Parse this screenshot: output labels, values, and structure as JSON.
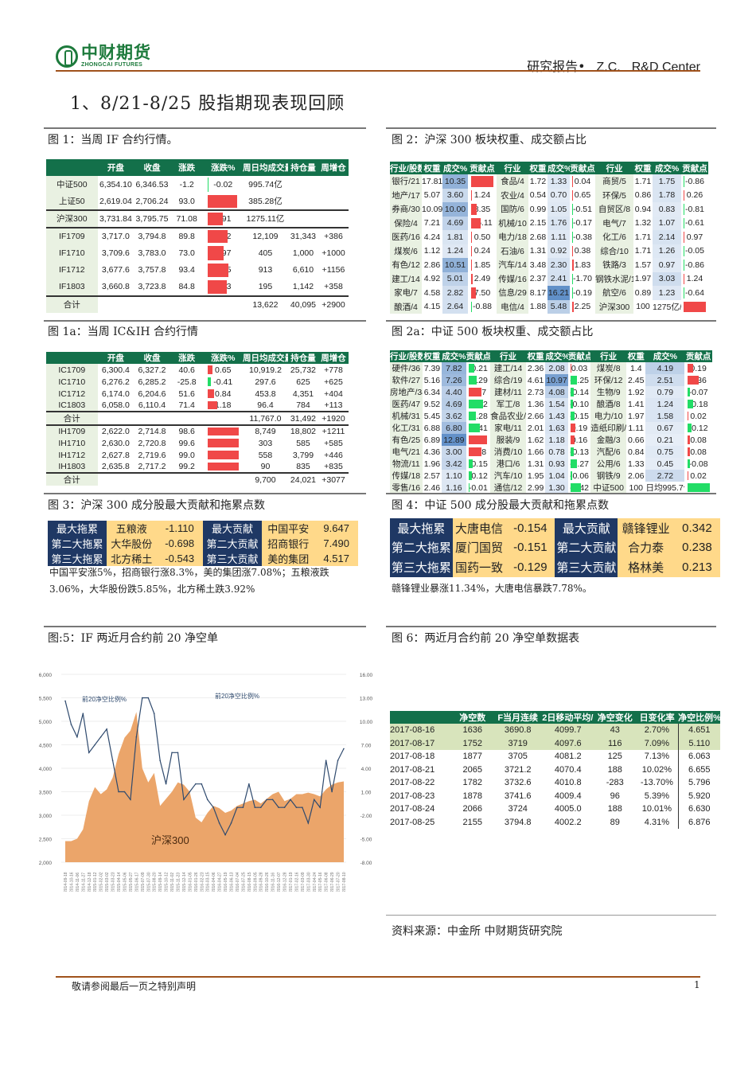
{
  "header": {
    "logo_cn": "中财期货",
    "logo_en": "ZHONGCAI FUTURES",
    "report": "研究报告•",
    "zc": "Z.C.",
    "center": "R&D Center"
  },
  "title": "1、8/21-8/25 股指期现表现回顾",
  "captions": {
    "fig1": "图 1：当周 IF 合约行情。",
    "fig2": "图 2：沪深 300 板块权重、成交额占比",
    "fig1a": "图 1a：当周 IC&IH 合约行情",
    "fig2a": "图 2a：中证 500 板块权重、成交额占比",
    "fig3": "图 3：沪深 300 成分股最大贡献和拖累点数",
    "fig4": "图 4：中证 500 成分股最大贡献和拖累点数",
    "fig5": "图:5：IF 两近月合约前 20 净空单",
    "fig6": "图 6：两近月合约前 20 净空单数据表"
  },
  "fig1": {
    "headers": [
      "",
      "开盘",
      "收盘",
      "涨跌",
      "涨跌%",
      "周日均成交量",
      "持仓量",
      "周增仓"
    ],
    "rows": [
      [
        "中证500",
        "6,354.10",
        "6,346.53",
        "-1.2",
        "-0.02",
        "995.74亿",
        "",
        ""
      ],
      [
        "上证50",
        "2,619.04",
        "2,706.24",
        "93.0",
        "3.56",
        "385.28亿",
        "",
        ""
      ],
      [
        "沪深300",
        "3,731.84",
        "3,795.75",
        "71.08",
        "1.91",
        "1275.11亿",
        "",
        ""
      ],
      [
        "IF1709",
        "3,717.0",
        "3,794.8",
        "89.8",
        "2.42",
        "12,109",
        "31,343",
        "+386"
      ],
      [
        "IF1710",
        "3,709.6",
        "3,783.0",
        "73.0",
        "1.97",
        "405",
        "1,000",
        "+1000"
      ],
      [
        "IF1712",
        "3,677.6",
        "3,757.8",
        "93.4",
        "2.55",
        "913",
        "6,610",
        "+1156"
      ],
      [
        "IF1803",
        "3,660.8",
        "3,723.8",
        "84.8",
        "2.33",
        "195",
        "1,142",
        "+358"
      ],
      [
        "合计",
        "",
        "",
        "",
        "",
        "13,622",
        "40,095",
        "+2900"
      ]
    ]
  },
  "fig1a": {
    "headers": [
      "",
      "开盘",
      "收盘",
      "涨跌",
      "涨跌%",
      "周日均成交量",
      "持仓量",
      "周增仓"
    ],
    "rows": [
      [
        "IC1709",
        "6,300.4",
        "6,327.2",
        "40.6",
        "0.65",
        "10,919.2",
        "25,732",
        "+778"
      ],
      [
        "IC1710",
        "6,276.2",
        "6,285.2",
        "-25.8",
        "-0.41",
        "297.6",
        "625",
        "+625"
      ],
      [
        "IC1712",
        "6,174.0",
        "6,204.6",
        "51.6",
        "0.84",
        "453.8",
        "4,351",
        "+404"
      ],
      [
        "IC1803",
        "6,058.0",
        "6,110.4",
        "71.4",
        "1.18",
        "96.4",
        "784",
        "+113"
      ],
      [
        "合计",
        "",
        "",
        "",
        "",
        "11,767.0",
        "31,492",
        "+1920"
      ],
      [
        "IH1709",
        "2,622.0",
        "2,714.8",
        "98.6",
        "3.77",
        "8,749",
        "18,802",
        "+1211"
      ],
      [
        "IH1710",
        "2,630.0",
        "2,720.8",
        "99.6",
        "3.80",
        "303",
        "585",
        "+585"
      ],
      [
        "IH1712",
        "2,627.8",
        "2,719.6",
        "99.0",
        "3.78",
        "558",
        "3,799",
        "+446"
      ],
      [
        "IH1803",
        "2,635.8",
        "2,717.2",
        "99.2",
        "3.79",
        "90",
        "835",
        "+835"
      ],
      [
        "合计",
        "",
        "",
        "",
        "",
        "9,700",
        "24,021",
        "+3077"
      ]
    ]
  },
  "fig2": {
    "headers": [
      "行业/股数",
      "权重",
      "成交%",
      "贡献点",
      "行业",
      "权重",
      "成交%",
      "贡献点",
      "行业",
      "权重",
      "成交%",
      "贡献点"
    ],
    "rows": [
      [
        "银行/21",
        "17.81",
        "10.35",
        "33.83",
        "食品/4",
        "1.72",
        "1.33",
        "0.04",
        "商贸/5",
        "1.71",
        "1.75",
        "-0.86"
      ],
      [
        "地产/17",
        "5.07",
        "3.60",
        "1.24",
        "农业/4",
        "0.54",
        "0.70",
        "0.65",
        "环保/5",
        "0.86",
        "1.78",
        "0.26"
      ],
      [
        "券商/30",
        "10.09",
        "10.00",
        "8.35",
        "国防/6",
        "0.99",
        "1.05",
        "-0.51",
        "自贸区/8",
        "0.94",
        "0.83",
        "-0.81"
      ],
      [
        "保险/4",
        "7.21",
        "4.69",
        "15.11",
        "机械/10",
        "2.15",
        "1.76",
        "-0.17",
        "电气/7",
        "1.32",
        "1.07",
        "-0.61"
      ],
      [
        "医药/16",
        "4.24",
        "1.81",
        "0.50",
        "电力/18",
        "2.68",
        "1.11",
        "-0.38",
        "化工/6",
        "1.71",
        "2.14",
        "0.97"
      ],
      [
        "煤炭/6",
        "1.12",
        "1.24",
        "0.24",
        "石油/6",
        "1.31",
        "0.92",
        "0.38",
        "综合/10",
        "1.71",
        "1.26",
        "-0.05"
      ],
      [
        "有色/12",
        "2.86",
        "10.51",
        "1.85",
        "汽车/14",
        "3.48",
        "2.30",
        "1.83",
        "铁路/3",
        "1.57",
        "0.97",
        "-0.86"
      ],
      [
        "建工/14",
        "4.92",
        "5.01",
        "2.49",
        "传媒/16",
        "2.37",
        "2.41",
        "-1.70",
        "钢铁水泥/10",
        "1.97",
        "3.03",
        "1.24"
      ],
      [
        "家电/7",
        "4.58",
        "2.82",
        "7.50",
        "信息/29",
        "8.17",
        "16.21",
        "-0.19",
        "航空/6",
        "0.89",
        "1.23",
        "-0.64"
      ],
      [
        "酿酒/4",
        "4.15",
        "2.64",
        "-0.88",
        "电信/4",
        "1.88",
        "5.48",
        "2.25",
        "沪深300",
        "100",
        "1275亿/天",
        "71.08"
      ]
    ]
  },
  "fig2a": {
    "headers": [
      "行业/股数",
      "权重",
      "成交%",
      "贡献点",
      "行业",
      "权重",
      "成交%",
      "贡献点",
      "行业",
      "权重",
      "成交%",
      "贡献点"
    ],
    "rows": [
      [
        "硬件/36",
        "7.39",
        "7.82",
        "-0.21",
        "建工/14",
        "2.36",
        "2.08",
        "0.03",
        "煤炭/8",
        "1.4",
        "4.19",
        "0.19"
      ],
      [
        "软件/27",
        "5.16",
        "7.26",
        "-0.29",
        "综合/19",
        "4.61",
        "10.97",
        "-0.25",
        "环保/12",
        "2.45",
        "2.51",
        "0.36"
      ],
      [
        "房地产/34",
        "6.34",
        "4.40",
        "0.47",
        "建材/11",
        "2.73",
        "4.08",
        "-0.14",
        "生物/9",
        "1.92",
        "0.79",
        "-0.07"
      ],
      [
        "医药/47",
        "9.52",
        "4.69",
        "-0.52",
        "军工/8",
        "1.36",
        "1.54",
        "-0.10",
        "酿酒/8",
        "1.41",
        "1.24",
        "-0.18"
      ],
      [
        "机械/31",
        "5.45",
        "3.62",
        "-0.28",
        "食品农业/1",
        "2.66",
        "1.43",
        "-0.15",
        "电力/10",
        "1.97",
        "1.58",
        "0.02"
      ],
      [
        "化工/31",
        "6.88",
        "6.80",
        "-0.41",
        "家电/11",
        "2.01",
        "1.63",
        "0.19",
        "造纸印刷/4",
        "1.11",
        "0.67",
        "-0.12"
      ],
      [
        "有色/25",
        "6.89",
        "12.89",
        "0.66",
        "服装/9",
        "1.62",
        "1.18",
        "0.16",
        "金融/3",
        "0.66",
        "0.21",
        "0.08"
      ],
      [
        "电气/21",
        "4.36",
        "3.00",
        "0.48",
        "消费/10",
        "1.66",
        "0.78",
        "-0.13",
        "汽配/6",
        "0.84",
        "0.75",
        "0.08"
      ],
      [
        "物流/11",
        "1.96",
        "3.42",
        "-0.15",
        "港口/6",
        "1.31",
        "0.93",
        "-0.27",
        "公用/6",
        "1.33",
        "0.45",
        "-0.08"
      ],
      [
        "传媒/18",
        "2.57",
        "1.10",
        "-0.12",
        "汽车/10",
        "1.95",
        "1.04",
        "-0.06",
        "钢铁/9",
        "2.06",
        "2.72",
        "0.02"
      ],
      [
        "零售/16",
        "2.46",
        "1.16",
        "-0.01",
        "通信/12",
        "2.99",
        "1.30",
        "-0.42",
        "中证500",
        "100",
        "日均995.7亿",
        "-1.23"
      ]
    ]
  },
  "fig3": {
    "rows": [
      [
        "最大拖累",
        "五粮液",
        "-1.110",
        "最大贡献",
        "中国平安",
        "9.647"
      ],
      [
        "第二大拖累",
        "大华股份",
        "-0.698",
        "第二大贡献",
        "招商银行",
        "7.490"
      ],
      [
        "第三大拖累",
        "北方稀土",
        "-0.543",
        "第三大贡献",
        "美的集团",
        "4.517"
      ]
    ],
    "note": "中国平安涨5%，招商银行涨8.3%，美的集团涨7.08%；五粮液跌3.06%，大华股份跌5.85%，北方稀土跌3.92%"
  },
  "fig4": {
    "rows": [
      [
        "最大拖累",
        "大唐电信",
        "-0.154",
        "最大贡献",
        "赣锋锂业",
        "0.342"
      ],
      [
        "第二大拖累",
        "厦门国贸",
        "-0.151",
        "第二大贡献",
        "合力泰",
        "0.238"
      ],
      [
        "第三大拖累",
        "国药一致",
        "-0.129",
        "第三大贡献",
        "格林美",
        "0.213"
      ]
    ],
    "note": "赣锋锂业暴涨11.34%，大唐电信暴跌7.78%。"
  },
  "chart_data": {
    "type": "area+line",
    "series": [
      {
        "name": "沪深300",
        "axis": "left",
        "type": "area",
        "color": "#eba56a",
        "values": [
          2450,
          2450,
          2500,
          2700,
          3300,
          3600,
          3450,
          3550,
          3800,
          4300,
          4650,
          4800,
          5200,
          4000,
          3700,
          3900,
          3200,
          3350,
          3500,
          3700,
          3650,
          3500,
          2950,
          2850,
          3050,
          3200,
          3150,
          3050,
          3100,
          3200,
          3250,
          3300,
          3330,
          3250,
          3350,
          3450,
          3500,
          3300,
          3350,
          3450,
          3450,
          3480,
          3450,
          3400,
          3550,
          3650,
          3700,
          3720
        ]
      },
      {
        "name": "前20净空比例%",
        "axis": "right",
        "type": "line",
        "color": "#2f4a6e",
        "values": [
          12.6,
          9.6,
          8,
          11,
          6,
          7,
          8,
          9,
          5,
          1,
          1,
          0,
          8,
          13,
          13,
          11,
          5,
          2,
          6,
          6,
          0,
          1,
          2,
          2,
          0,
          -1,
          -3,
          -4.5,
          -3,
          -1,
          -1,
          2,
          -1,
          -1,
          0,
          0,
          -1,
          -1,
          0,
          -1,
          -1,
          -3,
          0,
          -1,
          5,
          1,
          5,
          6.5
        ]
      }
    ],
    "x": [
      "2014-09-18",
      "2014-10-16",
      "2014-11-06",
      "2014-11-27",
      "2014-12-18",
      "2015-01-12",
      "2015-02-02",
      "2015-03-02",
      "2015-03-23",
      "2015-04-14",
      "2015-05-06",
      "2015-05-27",
      "2015-06-17",
      "2015-07-09",
      "2015-07-30",
      "2015-08-20",
      "2015-09-14",
      "2015-10-12",
      "2015-11-02",
      "2015-11-23",
      "2015-12-14",
      "2016-01-05",
      "2016-01-26",
      "2016-02-23",
      "2016-03-15",
      "2016-04-06",
      "2016-04-27",
      "2016-05-19",
      "2016-06-13",
      "2016-07-04",
      "2016-07-25",
      "2016-08-15",
      "2016-09-05",
      "2016-09-28",
      "2016-10-26",
      "2016-11-16",
      "2016-12-07",
      "2016-12-28",
      "2017-01-19",
      "2017-02-16",
      "2017-03-09",
      "2017-03-30",
      "2017-04-24",
      "2017-05-16",
      "2017-06-08",
      "2017-06-29",
      "2017-07-20",
      "2017-08-10"
    ],
    "left_ticks": [
      "2,000",
      "2,500",
      "3,000",
      "3,500",
      "4,000",
      "4,500",
      "5,000",
      "5,500",
      "6,000"
    ],
    "right_ticks": [
      "-8.00",
      "-5.00",
      "-2.00",
      "1.00",
      "4.00",
      "7.00",
      "10.00",
      "13.00",
      "16.00"
    ],
    "ylim_left": [
      2000,
      6000
    ],
    "ylim_right": [
      -8,
      16
    ],
    "grid": true,
    "annotations": [
      "前20净空比例%",
      "前20净空比例%",
      "沪深300"
    ]
  },
  "fig6": {
    "headers": [
      "",
      "净空数",
      "F当月连续",
      "2日移动平均/1",
      "净空变化",
      "日变化率",
      "净空比例%"
    ],
    "rows": [
      [
        "2017-08-16",
        "1636",
        "3690.8",
        "4099.7",
        "43",
        "2.70%",
        "4.651"
      ],
      [
        "2017-08-17",
        "1752",
        "3719",
        "4097.6",
        "116",
        "7.09%",
        "5.110"
      ],
      [
        "2017-08-18",
        "1877",
        "3705",
        "4081.2",
        "125",
        "7.13%",
        "6.063"
      ],
      [
        "2017-08-21",
        "2065",
        "3721.2",
        "4070.4",
        "188",
        "10.02%",
        "6.655"
      ],
      [
        "2017-08-22",
        "1782",
        "3732.6",
        "4010.8",
        "-283",
        "-13.70%",
        "5.796"
      ],
      [
        "2017-08-23",
        "1878",
        "3741.6",
        "4009.4",
        "96",
        "5.39%",
        "5.920"
      ],
      [
        "2017-08-24",
        "2066",
        "3724",
        "4005.0",
        "188",
        "10.01%",
        "6.630"
      ],
      [
        "2017-08-25",
        "2155",
        "3794.8",
        "4002.2",
        "89",
        "4.31%",
        "6.876"
      ]
    ]
  },
  "source": "资料来源：中金所  中财期货研究院",
  "footer": {
    "disclaimer": "敬请参阅最后一页之特别声明",
    "page": "1"
  },
  "colors": {
    "header_green": "#13704a",
    "brown": "#a0521c",
    "navy": "#1f3864",
    "yellow": "#ffd98a",
    "up": "#f04848",
    "down": "#22dd66",
    "heat": "#4a7fc0"
  }
}
